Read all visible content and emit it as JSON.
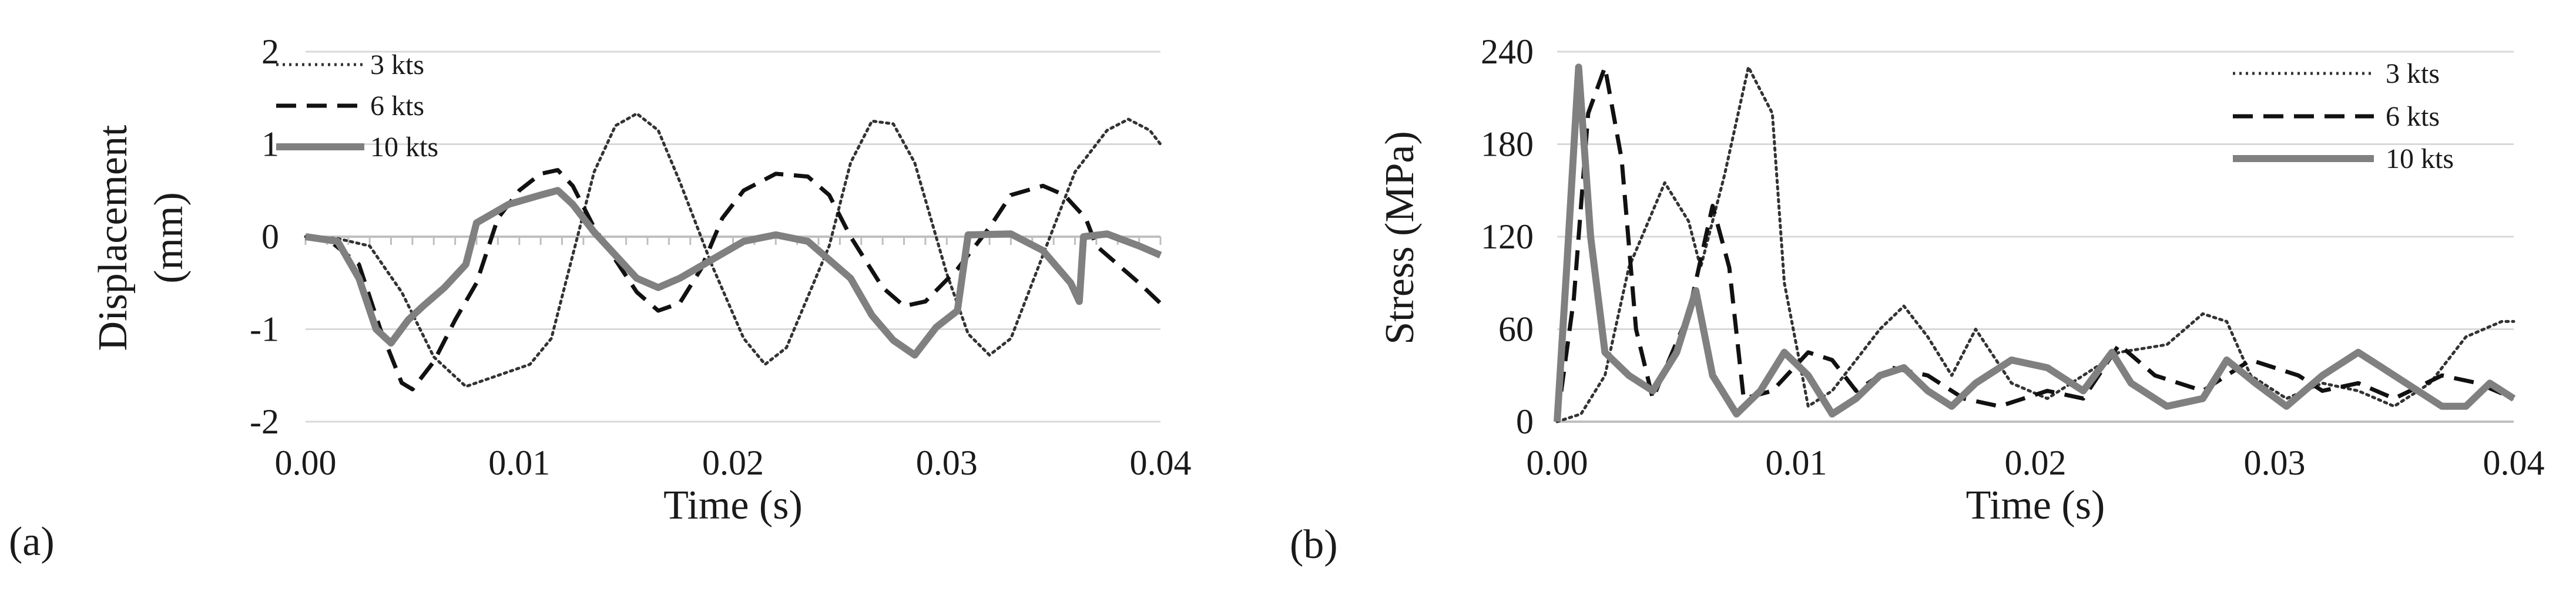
{
  "panel_labels": {
    "a": "(a)",
    "b": "(b)"
  },
  "chart_data": [
    {
      "type": "line",
      "panel": "(a)",
      "xlabel": "Time (s)",
      "ylabel": "Displacement (mm)",
      "xlim": [
        0,
        0.04
      ],
      "ylim": [
        -2,
        2
      ],
      "xticks": [
        "0.00",
        "0.01",
        "0.02",
        "0.03",
        "0.04"
      ],
      "yticks": [
        "2",
        "1",
        "0",
        "-1",
        "-2"
      ],
      "grid": "horizontal",
      "legend_position": "top-left",
      "series": [
        {
          "name": "3 kts",
          "style": "dotted",
          "color": "#333333",
          "points": [
            [
              0,
              0
            ],
            [
              0.0015,
              -0.02
            ],
            [
              0.003,
              -0.1
            ],
            [
              0.0045,
              -0.6
            ],
            [
              0.006,
              -1.3
            ],
            [
              0.0075,
              -1.62
            ],
            [
              0.009,
              -1.5
            ],
            [
              0.0105,
              -1.38
            ],
            [
              0.0115,
              -1.1
            ],
            [
              0.0125,
              -0.2
            ],
            [
              0.0135,
              0.7
            ],
            [
              0.0145,
              1.2
            ],
            [
              0.0155,
              1.33
            ],
            [
              0.0165,
              1.15
            ],
            [
              0.0175,
              0.6
            ],
            [
              0.019,
              -0.3
            ],
            [
              0.0205,
              -1.1
            ],
            [
              0.0215,
              -1.38
            ],
            [
              0.0225,
              -1.2
            ],
            [
              0.0245,
              -0.1
            ],
            [
              0.0255,
              0.8
            ],
            [
              0.0265,
              1.25
            ],
            [
              0.0275,
              1.22
            ],
            [
              0.0285,
              0.8
            ],
            [
              0.03,
              -0.4
            ],
            [
              0.031,
              -1.05
            ],
            [
              0.032,
              -1.28
            ],
            [
              0.033,
              -1.1
            ],
            [
              0.0345,
              -0.2
            ],
            [
              0.036,
              0.7
            ],
            [
              0.0375,
              1.15
            ],
            [
              0.0385,
              1.27
            ],
            [
              0.0395,
              1.15
            ],
            [
              0.04,
              1.0
            ]
          ]
        },
        {
          "name": "6 kts",
          "style": "dashed",
          "color": "#111111",
          "points": [
            [
              0,
              0
            ],
            [
              0.001,
              -0.02
            ],
            [
              0.0025,
              -0.3
            ],
            [
              0.0035,
              -1.0
            ],
            [
              0.0045,
              -1.58
            ],
            [
              0.005,
              -1.65
            ],
            [
              0.006,
              -1.35
            ],
            [
              0.007,
              -0.9
            ],
            [
              0.008,
              -0.5
            ],
            [
              0.009,
              0.2
            ],
            [
              0.01,
              0.5
            ],
            [
              0.011,
              0.68
            ],
            [
              0.0118,
              0.72
            ],
            [
              0.0125,
              0.55
            ],
            [
              0.0135,
              0.1
            ],
            [
              0.0145,
              -0.25
            ],
            [
              0.0155,
              -0.6
            ],
            [
              0.0165,
              -0.8
            ],
            [
              0.0175,
              -0.72
            ],
            [
              0.0185,
              -0.35
            ],
            [
              0.0195,
              0.2
            ],
            [
              0.0205,
              0.5
            ],
            [
              0.022,
              0.68
            ],
            [
              0.0235,
              0.65
            ],
            [
              0.0245,
              0.45
            ],
            [
              0.0255,
              0.0
            ],
            [
              0.027,
              -0.55
            ],
            [
              0.028,
              -0.75
            ],
            [
              0.029,
              -0.7
            ],
            [
              0.0305,
              -0.35
            ],
            [
              0.032,
              0.1
            ],
            [
              0.033,
              0.45
            ],
            [
              0.0345,
              0.55
            ],
            [
              0.0355,
              0.45
            ],
            [
              0.0365,
              0.2
            ],
            [
              0.037,
              -0.1
            ],
            [
              0.038,
              -0.3
            ],
            [
              0.039,
              -0.5
            ],
            [
              0.04,
              -0.72
            ]
          ]
        },
        {
          "name": "10 kts",
          "style": "solid",
          "color": "#808080",
          "points": [
            [
              0,
              0
            ],
            [
              0.0015,
              -0.05
            ],
            [
              0.0025,
              -0.45
            ],
            [
              0.0033,
              -1.0
            ],
            [
              0.004,
              -1.15
            ],
            [
              0.0048,
              -0.9
            ],
            [
              0.0055,
              -0.75
            ],
            [
              0.0065,
              -0.55
            ],
            [
              0.0075,
              -0.3
            ],
            [
              0.008,
              0.15
            ],
            [
              0.0095,
              0.35
            ],
            [
              0.011,
              0.45
            ],
            [
              0.0118,
              0.5
            ],
            [
              0.0125,
              0.35
            ],
            [
              0.0135,
              0.05
            ],
            [
              0.0145,
              -0.2
            ],
            [
              0.0155,
              -0.45
            ],
            [
              0.0165,
              -0.55
            ],
            [
              0.0175,
              -0.45
            ],
            [
              0.019,
              -0.25
            ],
            [
              0.0205,
              -0.05
            ],
            [
              0.022,
              0.02
            ],
            [
              0.0235,
              -0.05
            ],
            [
              0.0255,
              -0.45
            ],
            [
              0.0265,
              -0.85
            ],
            [
              0.0275,
              -1.12
            ],
            [
              0.0285,
              -1.28
            ],
            [
              0.0295,
              -0.98
            ],
            [
              0.0305,
              -0.8
            ],
            [
              0.031,
              0.02
            ],
            [
              0.033,
              0.03
            ],
            [
              0.0345,
              -0.15
            ],
            [
              0.0358,
              -0.5
            ],
            [
              0.0362,
              -0.7
            ],
            [
              0.0364,
              0.0
            ],
            [
              0.0375,
              0.03
            ],
            [
              0.039,
              -0.1
            ],
            [
              0.04,
              -0.2
            ]
          ]
        }
      ]
    },
    {
      "type": "line",
      "panel": "(b)",
      "xlabel": "Time (s)",
      "ylabel": "Stress (MPa)",
      "xlim": [
        0,
        0.04
      ],
      "ylim": [
        0,
        240
      ],
      "xticks": [
        "0.00",
        "0.01",
        "0.02",
        "0.03",
        "0.04"
      ],
      "yticks": [
        "240",
        "180",
        "120",
        "60",
        "0"
      ],
      "grid": "horizontal",
      "legend_position": "top-right",
      "series": [
        {
          "name": "3 kts",
          "style": "dotted",
          "color": "#333333",
          "points": [
            [
              0,
              0
            ],
            [
              0.001,
              5
            ],
            [
              0.002,
              30
            ],
            [
              0.003,
              100
            ],
            [
              0.0045,
              155
            ],
            [
              0.0055,
              130
            ],
            [
              0.006,
              100
            ],
            [
              0.007,
              160
            ],
            [
              0.008,
              230
            ],
            [
              0.009,
              200
            ],
            [
              0.0095,
              90
            ],
            [
              0.0105,
              10
            ],
            [
              0.0115,
              20
            ],
            [
              0.0125,
              40
            ],
            [
              0.0135,
              60
            ],
            [
              0.0145,
              75
            ],
            [
              0.0155,
              55
            ],
            [
              0.0165,
              30
            ],
            [
              0.0175,
              60
            ],
            [
              0.019,
              25
            ],
            [
              0.0205,
              15
            ],
            [
              0.022,
              30
            ],
            [
              0.0235,
              45
            ],
            [
              0.0255,
              50
            ],
            [
              0.027,
              70
            ],
            [
              0.028,
              65
            ],
            [
              0.029,
              30
            ],
            [
              0.0305,
              15
            ],
            [
              0.032,
              25
            ],
            [
              0.0335,
              20
            ],
            [
              0.035,
              10
            ],
            [
              0.0365,
              25
            ],
            [
              0.038,
              55
            ],
            [
              0.0395,
              65
            ],
            [
              0.04,
              65
            ]
          ]
        },
        {
          "name": "6 kts",
          "style": "dashed",
          "color": "#111111",
          "points": [
            [
              0,
              0
            ],
            [
              0.0007,
              80
            ],
            [
              0.0013,
              200
            ],
            [
              0.002,
              230
            ],
            [
              0.0027,
              170
            ],
            [
              0.0033,
              60
            ],
            [
              0.004,
              15
            ],
            [
              0.0055,
              70
            ],
            [
              0.0065,
              140
            ],
            [
              0.0072,
              100
            ],
            [
              0.0078,
              15
            ],
            [
              0.009,
              20
            ],
            [
              0.0105,
              45
            ],
            [
              0.0115,
              40
            ],
            [
              0.0125,
              20
            ],
            [
              0.014,
              35
            ],
            [
              0.0155,
              30
            ],
            [
              0.017,
              15
            ],
            [
              0.0185,
              10
            ],
            [
              0.0205,
              20
            ],
            [
              0.022,
              15
            ],
            [
              0.0235,
              50
            ],
            [
              0.025,
              30
            ],
            [
              0.027,
              20
            ],
            [
              0.029,
              40
            ],
            [
              0.031,
              30
            ],
            [
              0.032,
              20
            ],
            [
              0.0335,
              25
            ],
            [
              0.035,
              15
            ],
            [
              0.037,
              30
            ],
            [
              0.0385,
              25
            ],
            [
              0.04,
              15
            ]
          ]
        },
        {
          "name": "10 kts",
          "style": "solid",
          "color": "#808080",
          "points": [
            [
              0,
              0
            ],
            [
              0.0004,
              100
            ],
            [
              0.0009,
              230
            ],
            [
              0.0014,
              120
            ],
            [
              0.002,
              45
            ],
            [
              0.003,
              30
            ],
            [
              0.004,
              20
            ],
            [
              0.005,
              45
            ],
            [
              0.0058,
              85
            ],
            [
              0.0065,
              30
            ],
            [
              0.0075,
              5
            ],
            [
              0.0085,
              20
            ],
            [
              0.0095,
              45
            ],
            [
              0.0105,
              30
            ],
            [
              0.0115,
              5
            ],
            [
              0.0125,
              15
            ],
            [
              0.0135,
              30
            ],
            [
              0.0145,
              35
            ],
            [
              0.0155,
              20
            ],
            [
              0.0165,
              10
            ],
            [
              0.0175,
              25
            ],
            [
              0.019,
              40
            ],
            [
              0.0205,
              35
            ],
            [
              0.022,
              20
            ],
            [
              0.0232,
              45
            ],
            [
              0.024,
              25
            ],
            [
              0.0255,
              10
            ],
            [
              0.027,
              15
            ],
            [
              0.028,
              40
            ],
            [
              0.0292,
              25
            ],
            [
              0.0305,
              10
            ],
            [
              0.032,
              30
            ],
            [
              0.0335,
              45
            ],
            [
              0.0345,
              35
            ],
            [
              0.0355,
              25
            ],
            [
              0.037,
              10
            ],
            [
              0.038,
              10
            ],
            [
              0.039,
              25
            ],
            [
              0.04,
              15
            ]
          ]
        }
      ]
    }
  ]
}
